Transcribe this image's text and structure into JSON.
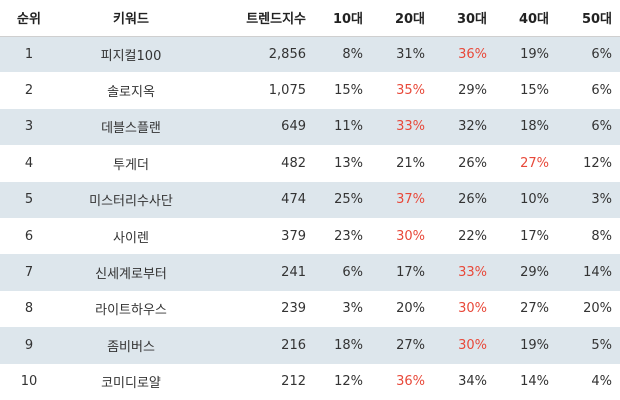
{
  "headers": {
    "rank": "순위",
    "keyword": "키워드",
    "trend": "트렌드지수",
    "a10": "10대",
    "a20": "20대",
    "a30": "30대",
    "a40": "40대",
    "a50": "50대"
  },
  "highlight_color": "#e8493a",
  "stripe_color": "#dde6ec",
  "rows": [
    {
      "rank": "1",
      "keyword": "피지컬100",
      "trend": "2,856",
      "a10": "8%",
      "a20": "31%",
      "a30": "36%",
      "a40": "19%",
      "a50": "6%",
      "highlight": "a30"
    },
    {
      "rank": "2",
      "keyword": "솔로지옥",
      "trend": "1,075",
      "a10": "15%",
      "a20": "35%",
      "a30": "29%",
      "a40": "15%",
      "a50": "6%",
      "highlight": "a20"
    },
    {
      "rank": "3",
      "keyword": "데블스플랜",
      "trend": "649",
      "a10": "11%",
      "a20": "33%",
      "a30": "32%",
      "a40": "18%",
      "a50": "6%",
      "highlight": "a20"
    },
    {
      "rank": "4",
      "keyword": "투게더",
      "trend": "482",
      "a10": "13%",
      "a20": "21%",
      "a30": "26%",
      "a40": "27%",
      "a50": "12%",
      "highlight": "a40"
    },
    {
      "rank": "5",
      "keyword": "미스터리수사단",
      "trend": "474",
      "a10": "25%",
      "a20": "37%",
      "a30": "26%",
      "a40": "10%",
      "a50": "3%",
      "highlight": "a20"
    },
    {
      "rank": "6",
      "keyword": "사이렌",
      "trend": "379",
      "a10": "23%",
      "a20": "30%",
      "a30": "22%",
      "a40": "17%",
      "a50": "8%",
      "highlight": "a20"
    },
    {
      "rank": "7",
      "keyword": "신세계로부터",
      "trend": "241",
      "a10": "6%",
      "a20": "17%",
      "a30": "33%",
      "a40": "29%",
      "a50": "14%",
      "highlight": "a30"
    },
    {
      "rank": "8",
      "keyword": "라이트하우스",
      "trend": "239",
      "a10": "3%",
      "a20": "20%",
      "a30": "30%",
      "a40": "27%",
      "a50": "20%",
      "highlight": "a30"
    },
    {
      "rank": "9",
      "keyword": "좀비버스",
      "trend": "216",
      "a10": "18%",
      "a20": "27%",
      "a30": "30%",
      "a40": "19%",
      "a50": "5%",
      "highlight": "a30"
    },
    {
      "rank": "10",
      "keyword": "코미디로얄",
      "trend": "212",
      "a10": "12%",
      "a20": "36%",
      "a30": "34%",
      "a40": "14%",
      "a50": "4%",
      "highlight": "a20"
    }
  ]
}
